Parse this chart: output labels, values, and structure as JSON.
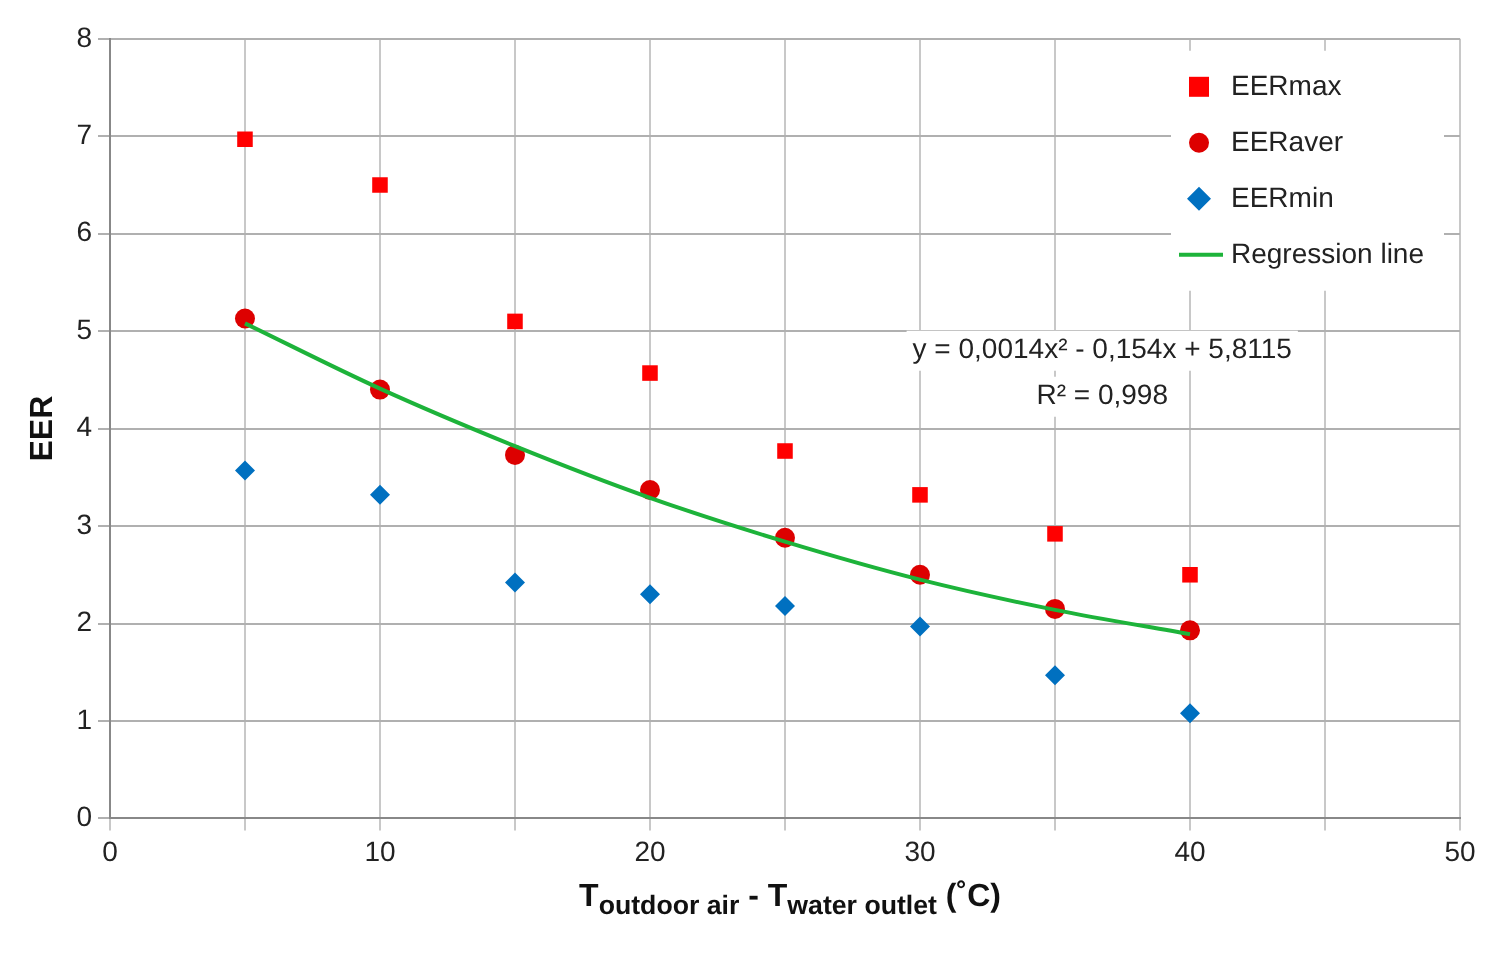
{
  "chart_data": {
    "type": "scatter",
    "xlabel": "T$_{outdoor air}$ -  T$_{water outlet}$ (˚C)",
    "ylabel": "EER",
    "x": [
      5,
      10,
      15,
      20,
      25,
      30,
      35,
      40
    ],
    "series": [
      {
        "name": "EERmax",
        "color": "#ff0000",
        "marker": "square",
        "values": [
          6.97,
          6.5,
          5.1,
          4.57,
          3.77,
          3.32,
          2.92,
          2.5
        ]
      },
      {
        "name": "EERaver",
        "color": "#dd0000",
        "marker": "circle",
        "values": [
          5.13,
          4.4,
          3.73,
          3.37,
          2.88,
          2.5,
          2.15,
          1.93
        ]
      },
      {
        "name": "EERmin",
        "color": "#0070c0",
        "marker": "diamond",
        "values": [
          3.57,
          3.32,
          2.42,
          2.3,
          2.18,
          1.97,
          1.47,
          1.08
        ]
      },
      {
        "name": "Regression line",
        "type": "line",
        "color": "#1db33a",
        "marker": "none",
        "x": [
          5,
          10,
          15,
          20,
          25,
          30,
          35,
          40
        ],
        "values": [
          5.08,
          4.41,
          3.82,
          3.29,
          2.84,
          2.45,
          2.14,
          1.89
        ]
      }
    ],
    "annotations": [
      "y = 0,0014x² - 0,154x + 5,8115",
      "R² = 0,998"
    ],
    "xlim": [
      0,
      50
    ],
    "xticks": [
      0,
      {
        "value": 5,
        "label": null
      },
      10,
      {
        "value": 15,
        "label": null
      },
      20,
      {
        "value": 25,
        "label": null
      },
      30,
      {
        "value": 35,
        "label": null
      },
      40,
      {
        "value": 45,
        "label": null
      },
      50
    ],
    "ylim": [
      0,
      8
    ],
    "yticks": [
      0,
      1,
      2,
      3,
      4,
      5,
      6,
      7,
      8
    ],
    "grid": true,
    "legend": "top right"
  }
}
